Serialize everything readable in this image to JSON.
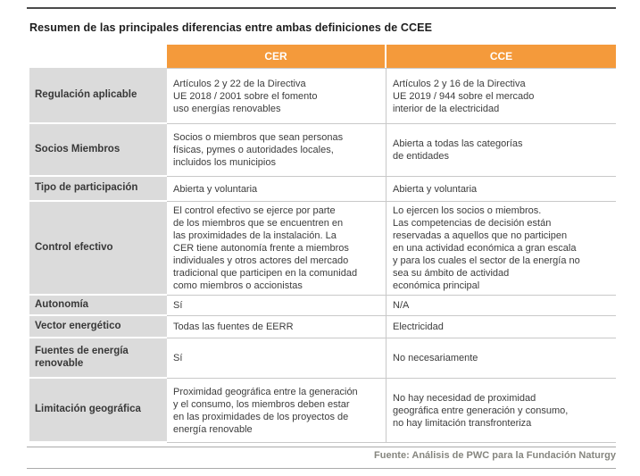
{
  "title": "Resumen de las principales diferencias entre ambas definiciones de CCEE",
  "colors": {
    "accent_orange": "#f49a3b",
    "label_column_bg": "#dbdbdb",
    "row_border": "#c9c9c9",
    "footer_text": "#86867f"
  },
  "table": {
    "columns": [
      "CER",
      "CCE"
    ],
    "rows": [
      {
        "label": "Regulación aplicable",
        "cer": "Artículos 2 y 22 de la Directiva\nUE 2018 / 2001 sobre el fomento\nuso energías renovables",
        "cce": "Artículos 2 y 16 de la Directiva\nUE 2019 / 944 sobre el mercado\ninterior de la electricidad"
      },
      {
        "label": "Socios Miembros",
        "cer": "Socios o miembros que sean personas\nfísicas, pymes o autoridades locales,\nincluidos los municipios",
        "cce": "Abierta a todas las categorías\nde entidades"
      },
      {
        "label": "Tipo de participación",
        "cer": "Abierta y voluntaria",
        "cce": "Abierta y voluntaria"
      },
      {
        "label": "Control efectivo",
        "cer": "El control efectivo se ejerce por parte\nde los miembros que se encuentren en\nlas proximidades de la instalación. La\nCER tiene autonomía frente a miembros\nindividuales y otros actores del mercado\ntradicional que participen en la comunidad\ncomo miembros o accionistas",
        "cce": "Lo ejercen los socios o miembros.\nLas competencias de decisión están\nreservadas a aquellos que no participen\nen una actividad económica a gran escala\ny para los cuales el sector de la energía no\nsea su ámbito de actividad\neconómica principal"
      },
      {
        "label": "Autonomía",
        "cer": "Sí",
        "cce": "N/A"
      },
      {
        "label": "Vector energético",
        "cer": "Todas las fuentes de EERR",
        "cce": "Electricidad"
      },
      {
        "label": "Fuentes de energía renovable",
        "cer": "Sí",
        "cce": "No necesariamente"
      },
      {
        "label": "Limitación geográfica",
        "cer": "Proximidad geográfica entre la generación\ny el consumo, los miembros deben estar\nen las proximidades de los proyectos de\nenergía renovable",
        "cce": "No hay necesidad de proximidad\ngeográfica entre generación y consumo,\nno hay limitación transfronteriza"
      }
    ]
  },
  "footer": {
    "source": "Fuente: Análisis de PWC para la Fundación Naturgy"
  }
}
